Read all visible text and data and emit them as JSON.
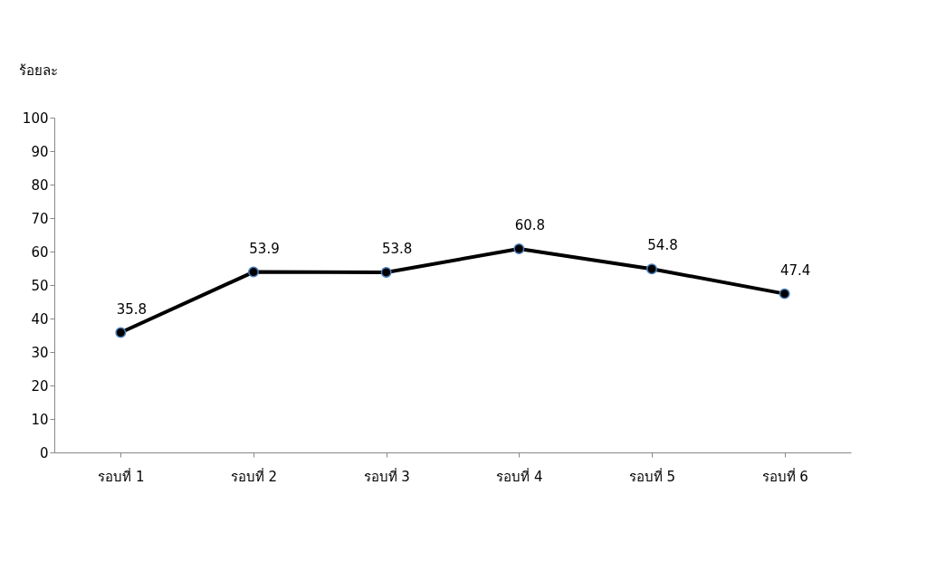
{
  "chart_data": {
    "type": "line",
    "ylabel": "ร้อยละ",
    "categories": [
      "รอบที่ 1",
      "รอบที่ 2",
      "รอบที่ 3",
      "รอบที่ 4",
      "รอบที่ 5",
      "รอบที่ 6"
    ],
    "series": [
      {
        "color": "#000000",
        "values": [
          35.8,
          53.9,
          53.8,
          60.8,
          54.8,
          47.4
        ]
      }
    ],
    "ylim": [
      0,
      100
    ],
    "yticks": [
      0,
      10,
      20,
      30,
      40,
      50,
      60,
      70,
      80,
      90,
      100
    ],
    "data_labels": true,
    "marker": "circle",
    "line_style": "solid",
    "grid": false
  }
}
